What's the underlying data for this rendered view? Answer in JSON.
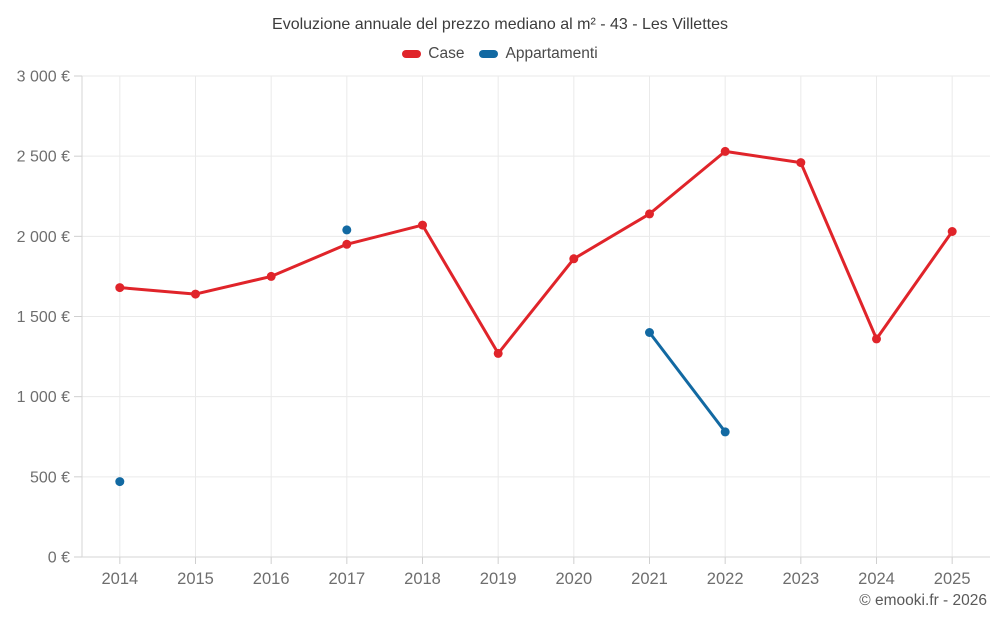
{
  "page": {
    "footer": "© emooki.fr - 2026"
  },
  "chart_data": {
    "type": "line",
    "title": "Evoluzione annuale del prezzo mediano al m² - 43 - Les Villettes",
    "x": [
      2014,
      2015,
      2016,
      2017,
      2018,
      2019,
      2020,
      2021,
      2022,
      2023,
      2024,
      2025
    ],
    "series": [
      {
        "name": "Case",
        "color": "#e0242a",
        "values": [
          1680,
          1640,
          1750,
          1950,
          2070,
          1270,
          1860,
          2140,
          2530,
          2460,
          1360,
          2030
        ]
      },
      {
        "name": "Appartamenti",
        "color": "#1269a2",
        "values": [
          470,
          null,
          null,
          2040,
          null,
          null,
          null,
          1400,
          780,
          null,
          null,
          null
        ]
      }
    ],
    "xlabel": "",
    "ylabel": "",
    "ylim": [
      0,
      3000
    ],
    "ytick_step": 500,
    "yticks": [
      "0 €",
      "500 €",
      "1 000 €",
      "1 500 €",
      "2 000 €",
      "2 500 €",
      "3 000 €"
    ],
    "grid": true,
    "legend_position": "top",
    "colors": {
      "grid": "#eaeaea",
      "axis": "#d6d6d6",
      "tick": "#cfcfcf",
      "tick_text": "#6e6e6e",
      "title_text": "#3c3c3c",
      "legend_text": "#4a4a4a",
      "footer_text": "#595959"
    }
  }
}
